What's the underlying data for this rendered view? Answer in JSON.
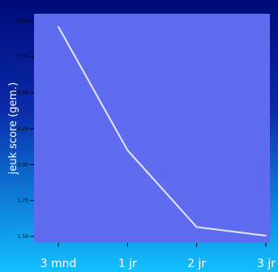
{
  "colors": {
    "slide_background": "#0a0a8c",
    "plot_background": "#5f6cf0",
    "line": "#e6e6ff",
    "text": "#ffffff",
    "tick_text": "#000000"
  },
  "chart_data": {
    "type": "line",
    "categories": [
      "3 mnd",
      "1 jr",
      "2 jr",
      "3 jr"
    ],
    "series": [
      {
        "values": [
          2.96,
          2.1,
          1.565,
          1.505
        ]
      }
    ],
    "title": "",
    "xlabel": "",
    "ylabel": "jeuk score (gem.)",
    "ylim": [
      1.455,
      3.05
    ],
    "yticks": [
      "1,50",
      "1,75",
      "2,00",
      "2,25",
      "2,50",
      "2,75",
      "3,00"
    ],
    "ytick_values": [
      1.5,
      1.75,
      2.0,
      2.25,
      2.5,
      2.75,
      3.0
    ],
    "grid": false,
    "legend": "none"
  }
}
